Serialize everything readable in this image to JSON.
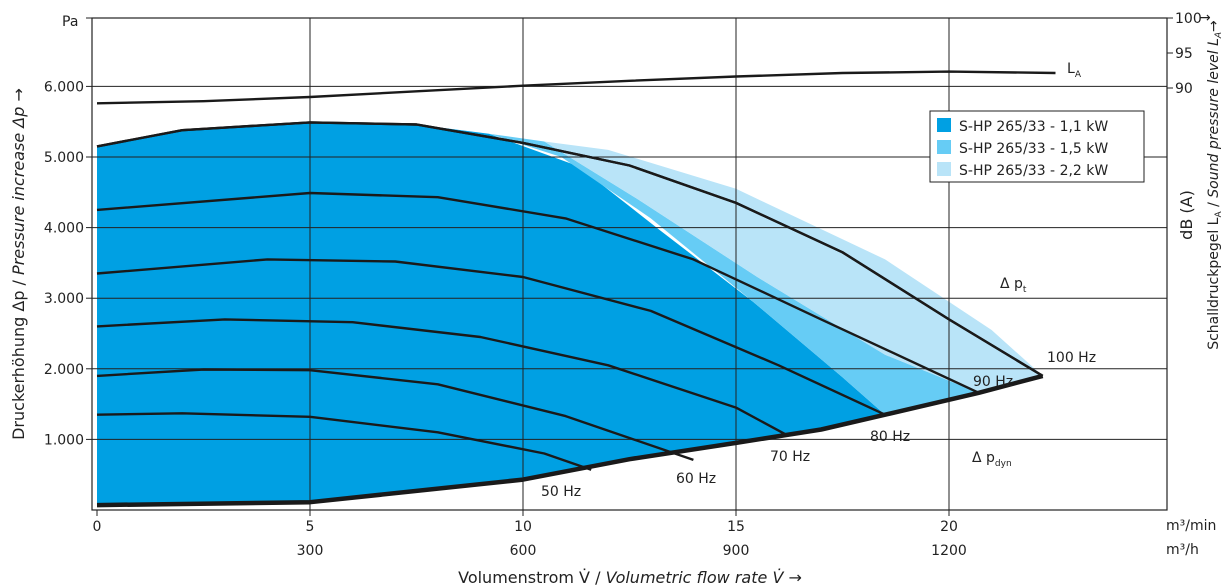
{
  "chart_data": {
    "type": "area",
    "title": "",
    "x_axis": {
      "ticks_top": [
        "0",
        "5",
        "10",
        "15",
        "20"
      ],
      "ticks_bottom": [
        "300",
        "600",
        "900",
        "1200"
      ],
      "unit_top": "m³/min",
      "unit_bottom": "m³/h",
      "title_plain": "Volumenstrom V̇ / ",
      "title_italic": "Volumetric flow rate V̇ →",
      "range": [
        0,
        25
      ]
    },
    "y_axis": {
      "unit": "Pa",
      "ticks": [
        "1.000",
        "2.000",
        "3.000",
        "4.000",
        "5.000",
        "6.000"
      ],
      "tick_values": [
        1000,
        2000,
        3000,
        4000,
        5000,
        6000
      ],
      "title_plain": "Druckerhöhung Δp / ",
      "title_italic": "Pressure increase Δp →",
      "range": [
        0,
        7000
      ]
    },
    "y2_axis": {
      "ticks": [
        "90",
        "95",
        "100"
      ],
      "tick_values": [
        90,
        95,
        100
      ],
      "unit": "dB (A)",
      "title_plain": "Schalldruckpegel L",
      "title_sub": "A",
      "title_sep": " / ",
      "title_italic": "Sound pressure level L",
      "title_italic_sub": "A",
      "arrow": "→"
    },
    "legend": {
      "position": "top-right",
      "items": [
        {
          "label": "S-HP 265/33 - 1,1 kW",
          "color": "#00a0e3"
        },
        {
          "label": "S-HP 265/33 - 1,5 kW",
          "color": "#66ccf5"
        },
        {
          "label": "S-HP 265/33 - 2,2 kW",
          "color": "#b9e4f8"
        }
      ]
    },
    "grid": true,
    "regions": [
      {
        "name": "S-HP 265/33 - 1,1 kW",
        "color": "#00a0e3",
        "points": [
          [
            0,
            70
          ],
          [
            0,
            5150
          ],
          [
            2,
            5380
          ],
          [
            5,
            5490
          ],
          [
            7.5,
            5460
          ],
          [
            9.2,
            5330
          ],
          [
            11.3,
            4870
          ],
          [
            13.2,
            3970
          ],
          [
            15.4,
            2950
          ],
          [
            17.5,
            1880
          ],
          [
            18.5,
            1350
          ],
          [
            17,
            1140
          ],
          [
            15,
            950
          ],
          [
            12.5,
            720
          ],
          [
            10,
            430
          ],
          [
            5,
            110
          ],
          [
            0,
            70
          ]
        ]
      },
      {
        "name": "S-HP 265/33 - 1,5 kW",
        "color": "#66ccf5",
        "points": [
          [
            9.2,
            5330
          ],
          [
            10.9,
            5000
          ],
          [
            13,
            4130
          ],
          [
            15.4,
            2950
          ],
          [
            17.5,
            1880
          ],
          [
            18.5,
            1350
          ],
          [
            20.7,
            1660
          ],
          [
            18.5,
            2200
          ],
          [
            15.5,
            3300
          ],
          [
            12.7,
            4400
          ],
          [
            10.5,
            5220
          ]
        ]
      },
      {
        "name": "S-HP 265/33 - 2,2 kW",
        "color": "#b9e4f8",
        "points": [
          [
            10.5,
            5220
          ],
          [
            12.7,
            4400
          ],
          [
            15.5,
            3300
          ],
          [
            18.5,
            2200
          ],
          [
            20.7,
            1660
          ],
          [
            22.2,
            1900
          ],
          [
            21,
            2550
          ],
          [
            18.5,
            3550
          ],
          [
            15,
            4550
          ],
          [
            12,
            5100
          ]
        ]
      }
    ],
    "envelope": [
      [
        0,
        5150
      ],
      [
        2,
        5380
      ],
      [
        5,
        5490
      ],
      [
        7.5,
        5460
      ],
      [
        10,
        5200
      ],
      [
        12.5,
        4880
      ],
      [
        15,
        4350
      ],
      [
        17.5,
        3650
      ],
      [
        20,
        2700
      ],
      [
        22.2,
        1900
      ]
    ],
    "lower_boundary": [
      [
        0,
        70
      ],
      [
        5,
        110
      ],
      [
        10,
        430
      ],
      [
        12.5,
        720
      ],
      [
        15,
        950
      ],
      [
        17,
        1140
      ],
      [
        18.5,
        1350
      ],
      [
        20.7,
        1660
      ],
      [
        22.2,
        1900
      ]
    ],
    "speed_curves": [
      {
        "label": "50 Hz",
        "points": [
          [
            0,
            1350
          ],
          [
            2,
            1370
          ],
          [
            5,
            1320
          ],
          [
            8,
            1100
          ],
          [
            10.5,
            800
          ],
          [
            11.6,
            570
          ]
        ]
      },
      {
        "label": "60 Hz",
        "points": [
          [
            0,
            1900
          ],
          [
            2.5,
            1990
          ],
          [
            5,
            1980
          ],
          [
            8,
            1780
          ],
          [
            11,
            1330
          ],
          [
            14,
            710
          ]
        ]
      },
      {
        "label": "70 Hz",
        "points": [
          [
            0,
            2600
          ],
          [
            3,
            2700
          ],
          [
            6,
            2660
          ],
          [
            9,
            2450
          ],
          [
            12,
            2050
          ],
          [
            15,
            1450
          ],
          [
            16.2,
            1060
          ]
        ]
      },
      {
        "label": "80 Hz",
        "points": [
          [
            0,
            3350
          ],
          [
            4,
            3550
          ],
          [
            7,
            3520
          ],
          [
            10,
            3300
          ],
          [
            13,
            2820
          ],
          [
            16,
            2050
          ],
          [
            18.5,
            1350
          ]
        ]
      },
      {
        "label": "90 Hz",
        "points": [
          [
            0,
            4250
          ],
          [
            5,
            4490
          ],
          [
            8,
            4430
          ],
          [
            11,
            4130
          ],
          [
            14,
            3550
          ],
          [
            17,
            2700
          ],
          [
            20.7,
            1660
          ]
        ]
      },
      {
        "label": "100 Hz",
        "points": [
          [
            0,
            5150
          ],
          [
            2,
            5380
          ],
          [
            5,
            5490
          ],
          [
            7.5,
            5460
          ],
          [
            10,
            5200
          ],
          [
            12.5,
            4880
          ],
          [
            15,
            4350
          ],
          [
            17.5,
            3650
          ],
          [
            20,
            2700
          ],
          [
            22.2,
            1900
          ]
        ]
      }
    ],
    "sound_level_curve": {
      "label": "L",
      "label_sub": "A",
      "points": [
        [
          0,
          5760
        ],
        [
          2.5,
          5790
        ],
        [
          5,
          5850
        ],
        [
          7.5,
          5930
        ],
        [
          10,
          6010
        ],
        [
          12.5,
          6080
        ],
        [
          15,
          6140
        ],
        [
          17.5,
          6190
        ],
        [
          20,
          6210
        ],
        [
          22.5,
          6190
        ]
      ]
    },
    "annotations": [
      {
        "main": "Δ p",
        "sub": "t"
      },
      {
        "main": "Δ p",
        "sub": "dyn"
      }
    ]
  }
}
